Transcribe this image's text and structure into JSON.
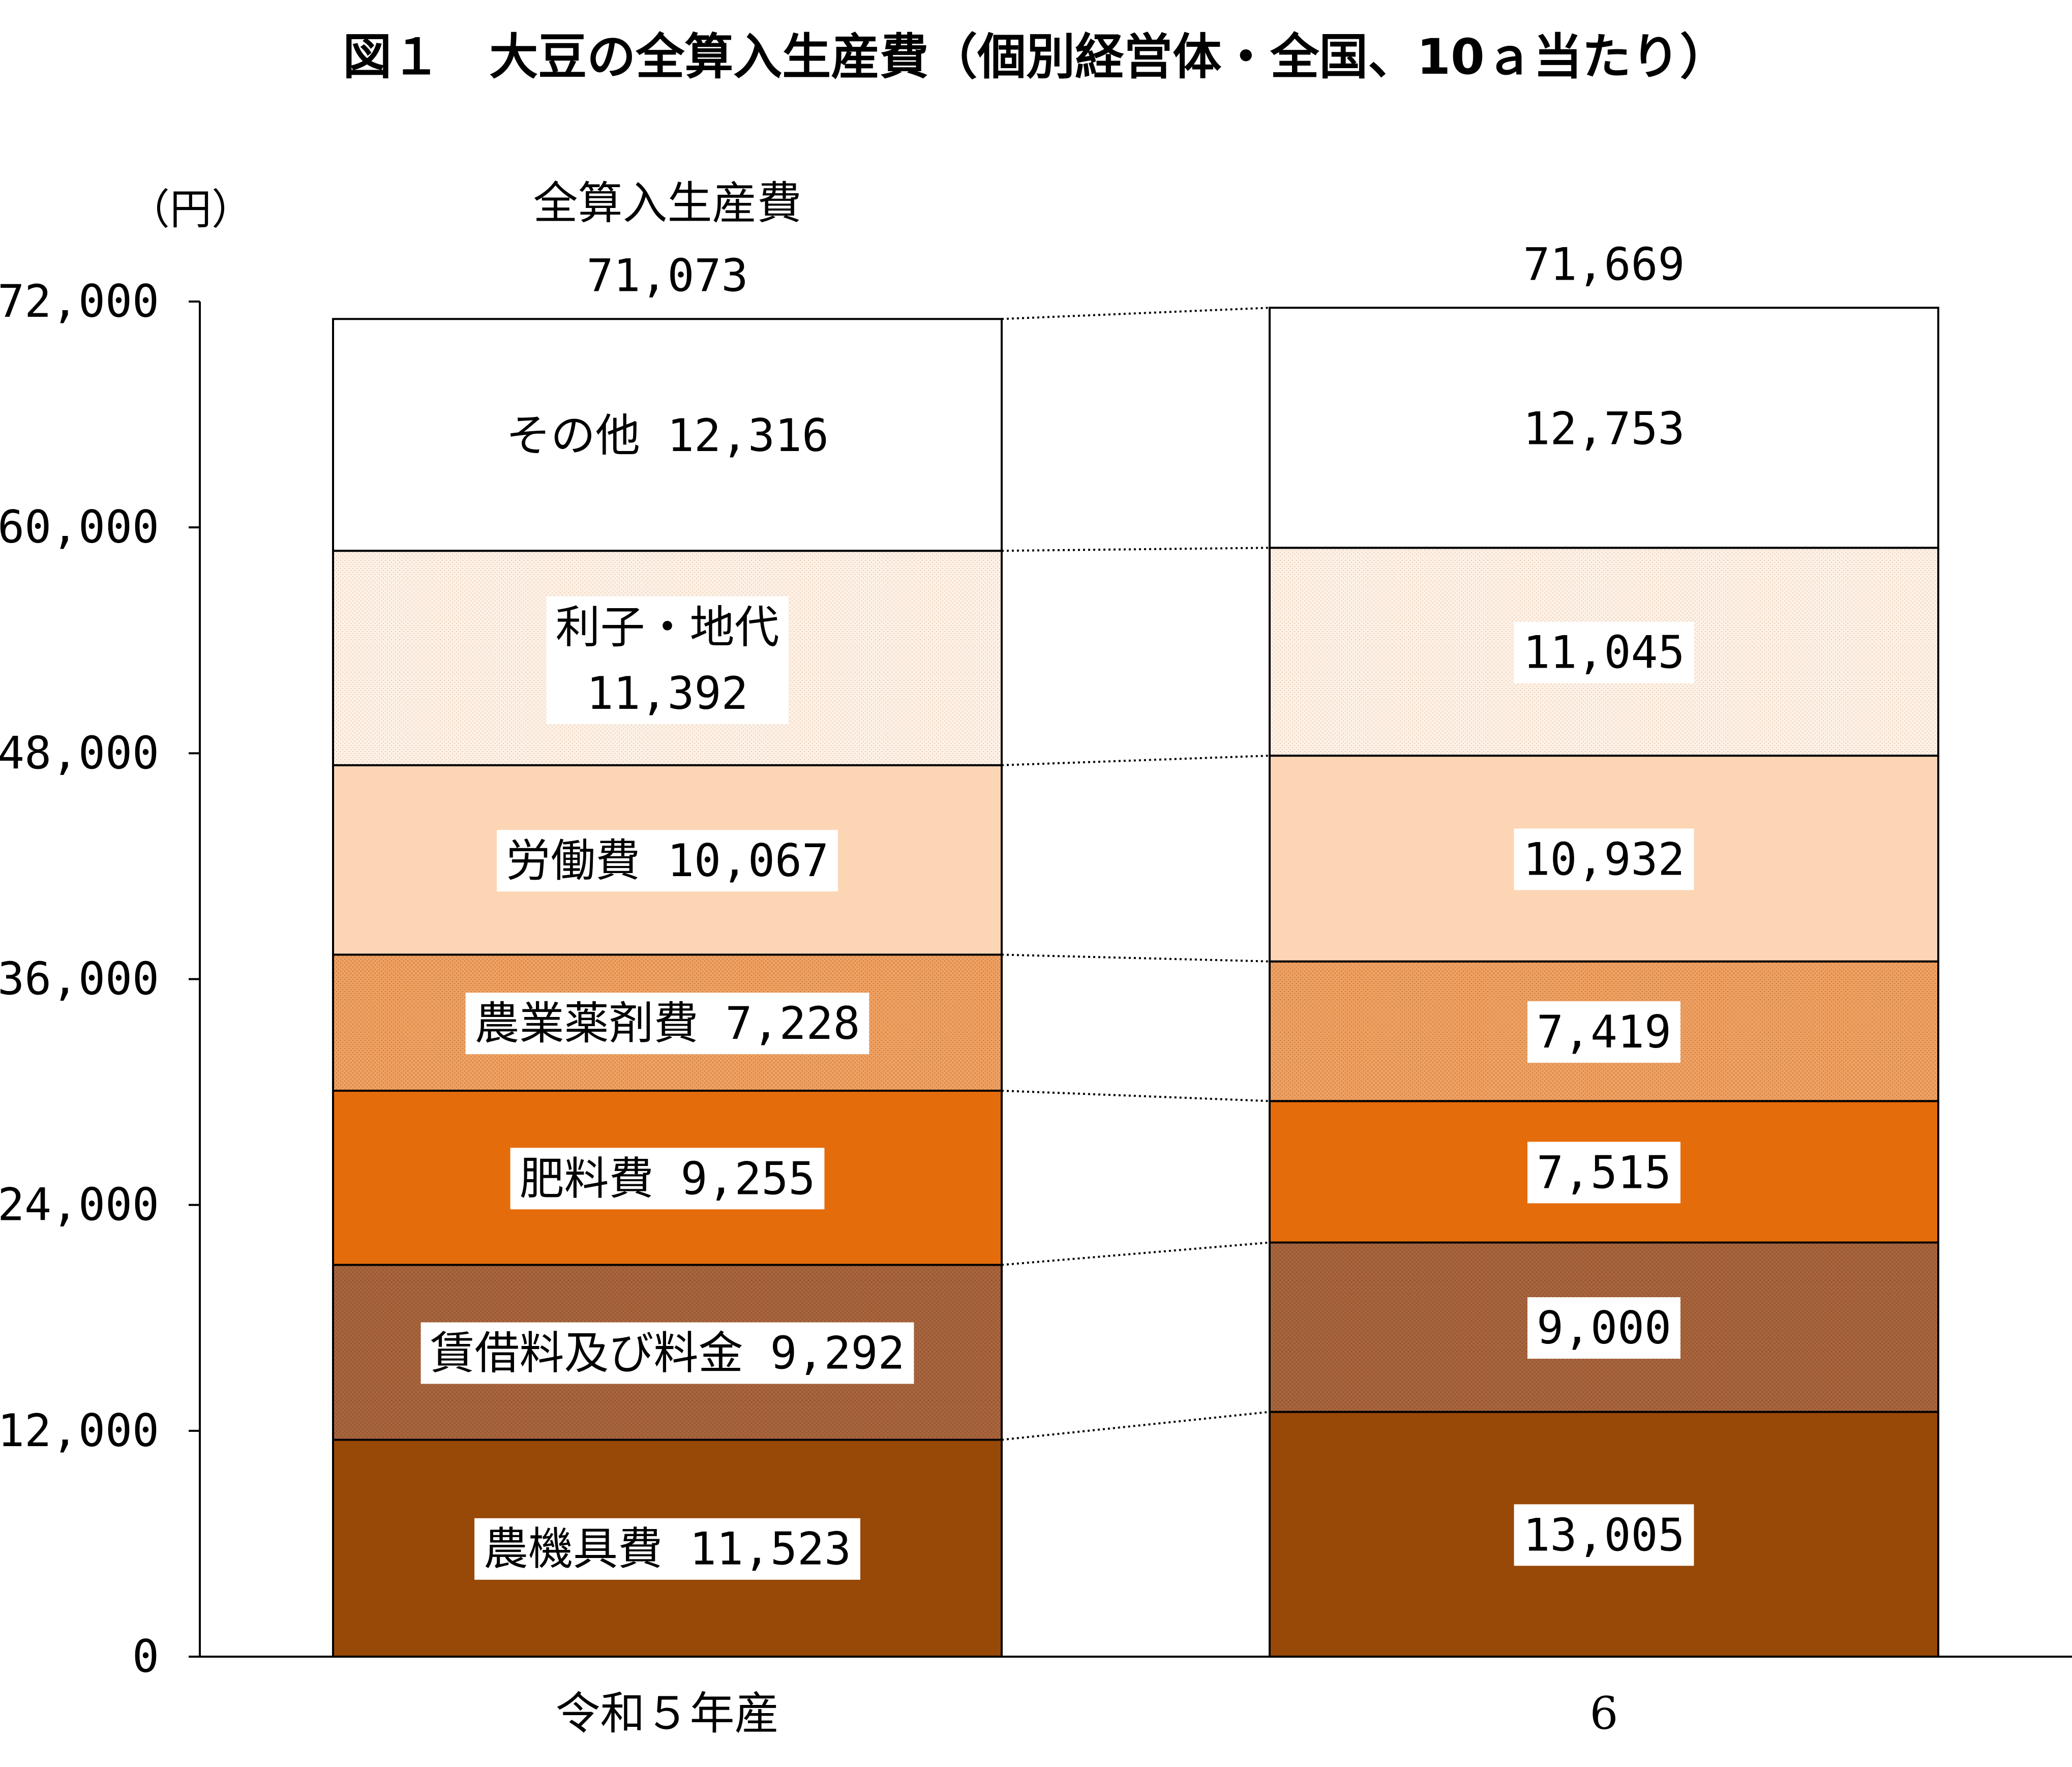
{
  "chart_data": {
    "type": "bar",
    "stacked": true,
    "title": "図１　大豆の全算入生産費（個別経営体・全国、10ａ当たり）",
    "ylabel": "（円）",
    "ylim": [
      0,
      72000
    ],
    "yticks": [
      "0",
      "12,000",
      "24,000",
      "36,000",
      "48,000",
      "60,000",
      "72,000"
    ],
    "ytick_values": [
      0,
      12000,
      24000,
      36000,
      48000,
      60000,
      72000
    ],
    "categories": [
      "令和５年産",
      "6"
    ],
    "total_label": "全算入生産費",
    "totals": [
      71073,
      71669
    ],
    "total_texts": [
      "71,073",
      "71,669"
    ],
    "series": [
      {
        "name": "農機具費",
        "values": [
          11523,
          13005
        ],
        "value_texts": [
          "11,523",
          "13,005"
        ],
        "color": "#984807"
      },
      {
        "name": "賃借料及び料金",
        "values": [
          9292,
          9000
        ],
        "value_texts": [
          "9,292",
          "9,000"
        ],
        "color": "#a8643c",
        "pattern": "dots"
      },
      {
        "name": "肥料費",
        "values": [
          9255,
          7515
        ],
        "value_texts": [
          "9,255",
          "7,515"
        ],
        "color": "#e46c0a"
      },
      {
        "name": "農業薬剤費",
        "values": [
          7228,
          7419
        ],
        "value_texts": [
          "7,228",
          "7,419"
        ],
        "color": "#f0a060",
        "pattern": "dots"
      },
      {
        "name": "労働費",
        "values": [
          10067,
          10932
        ],
        "value_texts": [
          "10,067",
          "10,932"
        ],
        "color": "#fcd5b5"
      },
      {
        "name": "利子・地代",
        "values": [
          11392,
          11045
        ],
        "value_texts": [
          "11,392",
          "11,045"
        ],
        "color": "#fdf1e6",
        "pattern": "dots"
      },
      {
        "name": "その他",
        "values": [
          12316,
          12753
        ],
        "value_texts": [
          "12,316",
          "12,753"
        ],
        "color": "#ffffff"
      }
    ],
    "grid": false,
    "connector_lines": "dotted"
  }
}
